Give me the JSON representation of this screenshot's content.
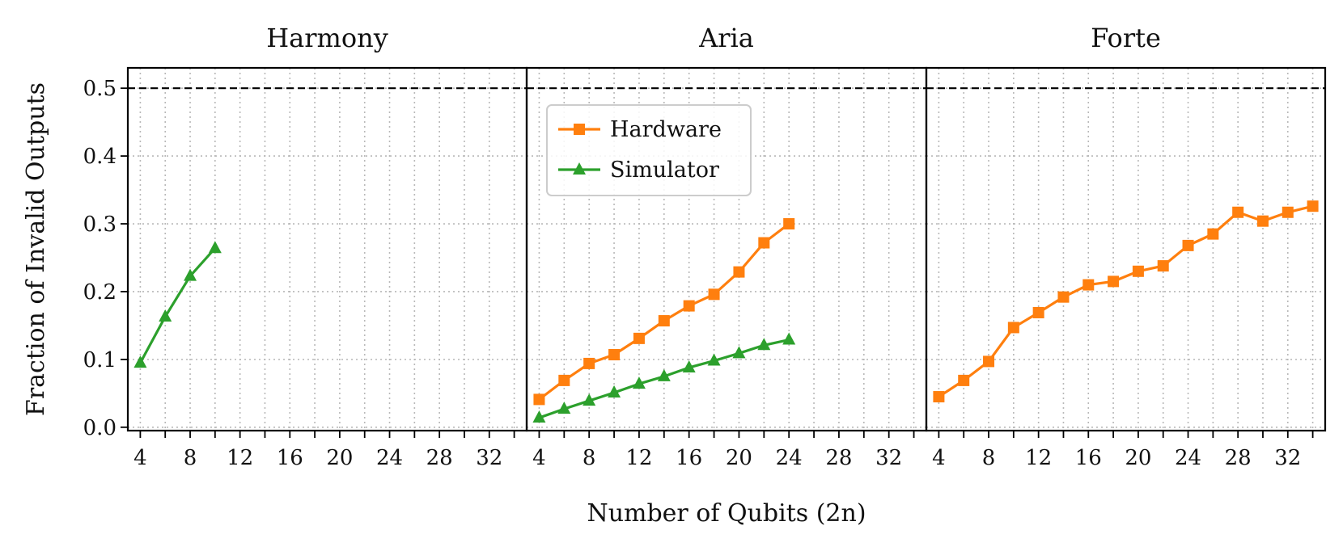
{
  "chart_data": {
    "type": "line",
    "ylabel": "Fraction of Invalid Outputs",
    "xlabel": "Number of Qubits (2n)",
    "ylim": [
      -0.005,
      0.53
    ],
    "xlim": [
      3,
      35
    ],
    "xticks": [
      4,
      8,
      12,
      16,
      20,
      24,
      28,
      32
    ],
    "yticks": [
      0.0,
      0.1,
      0.2,
      0.3,
      0.4,
      0.5
    ],
    "ytick_labels": [
      "0.0",
      "0.1",
      "0.2",
      "0.3",
      "0.4",
      "0.5"
    ],
    "reference_line": 0.5,
    "grid": true,
    "legend_placement": "upper-left of middle panel",
    "colors": {
      "hardware": "#ff7f0e",
      "simulator": "#2ca02c"
    },
    "legend": [
      {
        "label": "Hardware",
        "color": "#ff7f0e",
        "marker": "square"
      },
      {
        "label": "Simulator",
        "color": "#2ca02c",
        "marker": "triangle"
      }
    ],
    "panels": [
      {
        "title": "Harmony",
        "series": [
          {
            "name": "Simulator",
            "x": [
              4,
              6,
              8,
              10
            ],
            "y": [
              0.095,
              0.163,
              0.223,
              0.264
            ]
          }
        ]
      },
      {
        "title": "Aria",
        "series": [
          {
            "name": "Hardware",
            "x": [
              4,
              6,
              8,
              10,
              12,
              14,
              16,
              18,
              20,
              22,
              24
            ],
            "y": [
              0.041,
              0.069,
              0.094,
              0.107,
              0.131,
              0.157,
              0.179,
              0.196,
              0.229,
              0.272,
              0.3
            ]
          },
          {
            "name": "Simulator",
            "x": [
              4,
              6,
              8,
              10,
              12,
              14,
              16,
              18,
              20,
              22,
              24
            ],
            "y": [
              0.014,
              0.027,
              0.039,
              0.051,
              0.064,
              0.075,
              0.088,
              0.098,
              0.109,
              0.121,
              0.129
            ]
          }
        ]
      },
      {
        "title": "Forte",
        "series": [
          {
            "name": "Hardware",
            "x": [
              4,
              6,
              8,
              10,
              12,
              14,
              16,
              18,
              20,
              22,
              24,
              26,
              28,
              30,
              32,
              34
            ],
            "y": [
              0.045,
              0.069,
              0.097,
              0.147,
              0.169,
              0.192,
              0.21,
              0.215,
              0.23,
              0.238,
              0.268,
              0.285,
              0.317,
              0.304,
              0.317,
              0.326
            ]
          }
        ]
      }
    ]
  }
}
